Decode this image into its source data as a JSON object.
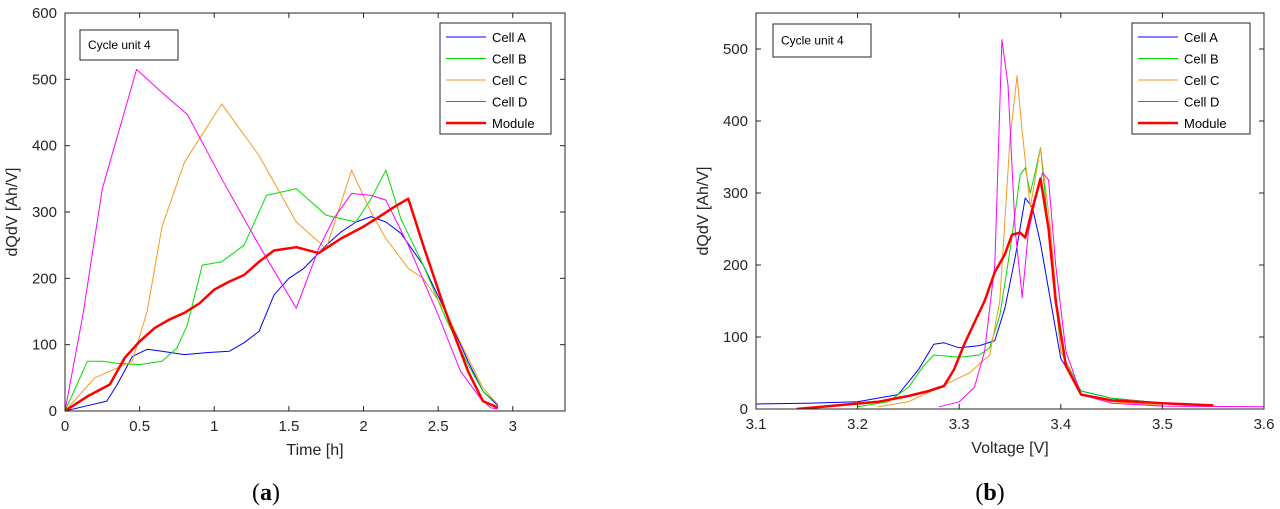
{
  "chart_data": [
    {
      "type": "line",
      "panel_label": "(a)",
      "annotation": "Cycle unit 4",
      "xlabel": "Time [h]",
      "ylabel": "dQdV [Ah/V]",
      "xlim": [
        0,
        3.35
      ],
      "ylim": [
        0,
        600
      ],
      "xticks": [
        "0",
        "0.5",
        "1",
        "1.5",
        "2",
        "2.5",
        "3"
      ],
      "xtick_values": [
        0,
        0.5,
        1,
        1.5,
        2,
        2.5,
        3
      ],
      "yticks": [
        "0",
        "100",
        "200",
        "300",
        "400",
        "500",
        "600"
      ],
      "ytick_values": [
        0,
        100,
        200,
        300,
        400,
        500,
        600
      ],
      "legend_position": "top-right",
      "series": [
        {
          "name": "Cell A",
          "color": "#0000ff",
          "width": 1,
          "x": [
            0,
            0.15,
            0.28,
            0.35,
            0.45,
            0.55,
            0.65,
            0.8,
            0.95,
            1.1,
            1.2,
            1.3,
            1.4,
            1.5,
            1.6,
            1.75,
            1.85,
            1.95,
            2.05,
            2.15,
            2.25,
            2.4,
            2.55,
            2.7,
            2.8,
            2.9
          ],
          "y": [
            0,
            8,
            15,
            40,
            82,
            93,
            90,
            85,
            88,
            90,
            103,
            120,
            175,
            200,
            215,
            250,
            270,
            285,
            293,
            285,
            268,
            220,
            150,
            75,
            30,
            8
          ]
        },
        {
          "name": "Cell B",
          "color": "#00dd00",
          "width": 1,
          "x": [
            0,
            0.15,
            0.25,
            0.35,
            0.5,
            0.65,
            0.75,
            0.82,
            0.92,
            1.05,
            1.2,
            1.35,
            1.55,
            1.75,
            1.95,
            2.05,
            2.15,
            2.25,
            2.4,
            2.55,
            2.7,
            2.8,
            2.9
          ],
          "y": [
            0,
            75,
            75,
            72,
            70,
            75,
            95,
            130,
            220,
            225,
            250,
            325,
            335,
            295,
            285,
            320,
            363,
            290,
            220,
            140,
            70,
            30,
            10
          ]
        },
        {
          "name": "Cell C",
          "color": "#f59a23",
          "width": 1,
          "x": [
            0,
            0.2,
            0.35,
            0.45,
            0.55,
            0.65,
            0.8,
            1.05,
            1.3,
            1.55,
            1.75,
            1.92,
            2.05,
            2.15,
            2.3,
            2.4,
            2.55,
            2.7,
            2.8,
            2.9
          ],
          "y": [
            0,
            50,
            65,
            75,
            150,
            278,
            375,
            463,
            385,
            285,
            245,
            363,
            300,
            260,
            215,
            200,
            150,
            80,
            35,
            10
          ]
        },
        {
          "name": "Cell D",
          "color": "#ff00ff",
          "width": 1,
          "x": [
            0,
            0.12,
            0.25,
            0.48,
            0.65,
            0.82,
            1.05,
            1.3,
            1.55,
            1.7,
            1.8,
            1.92,
            2.05,
            2.15,
            2.3,
            2.5,
            2.65,
            2.78,
            2.85,
            2.9
          ],
          "y": [
            0,
            145,
            335,
            515,
            480,
            447,
            350,
            250,
            155,
            245,
            290,
            328,
            325,
            318,
            250,
            145,
            60,
            20,
            5,
            3
          ]
        },
        {
          "name": "Module",
          "color": "#ff0000",
          "width": 2.5,
          "x": [
            0,
            0.15,
            0.3,
            0.4,
            0.5,
            0.6,
            0.7,
            0.8,
            0.9,
            1.0,
            1.1,
            1.2,
            1.3,
            1.4,
            1.55,
            1.7,
            1.85,
            2.0,
            2.1,
            2.2,
            2.3,
            2.4,
            2.55,
            2.7,
            2.8,
            2.9
          ],
          "y": [
            0,
            22,
            40,
            80,
            105,
            125,
            138,
            148,
            162,
            183,
            195,
            205,
            225,
            242,
            247,
            238,
            260,
            278,
            292,
            307,
            320,
            250,
            150,
            60,
            15,
            5
          ]
        }
      ]
    },
    {
      "type": "line",
      "panel_label": "(b)",
      "annotation": "Cycle unit 4",
      "xlabel": "Voltage [V]",
      "ylabel": "dQdV [Ah/V]",
      "xlim": [
        3.1,
        3.6
      ],
      "ylim": [
        0,
        550
      ],
      "xticks": [
        "3.1",
        "3.2",
        "3.3",
        "3.4",
        "3.5",
        "3.6"
      ],
      "xtick_values": [
        3.1,
        3.2,
        3.3,
        3.4,
        3.5,
        3.6
      ],
      "yticks": [
        "0",
        "100",
        "200",
        "300",
        "400",
        "500"
      ],
      "ytick_values": [
        0,
        100,
        200,
        300,
        400,
        500
      ],
      "legend_position": "top-right",
      "series": [
        {
          "name": "Cell A",
          "color": "#0000ff",
          "width": 1,
          "x": [
            3.1,
            3.15,
            3.2,
            3.24,
            3.26,
            3.275,
            3.285,
            3.3,
            3.32,
            3.335,
            3.345,
            3.355,
            3.365,
            3.372,
            3.38,
            3.39,
            3.4,
            3.42,
            3.45,
            3.5,
            3.55
          ],
          "y": [
            7,
            8,
            10,
            20,
            55,
            90,
            92,
            85,
            88,
            95,
            140,
            210,
            293,
            280,
            230,
            150,
            70,
            25,
            15,
            8,
            5
          ]
        },
        {
          "name": "Cell B",
          "color": "#00dd00",
          "width": 1,
          "x": [
            3.2,
            3.23,
            3.25,
            3.265,
            3.275,
            3.3,
            3.32,
            3.33,
            3.34,
            3.35,
            3.36,
            3.365,
            3.37,
            3.375,
            3.38,
            3.39,
            3.4,
            3.42,
            3.45,
            3.5,
            3.55
          ],
          "y": [
            3,
            10,
            30,
            60,
            75,
            72,
            75,
            85,
            130,
            220,
            325,
            335,
            300,
            330,
            363,
            220,
            80,
            25,
            15,
            8,
            5
          ]
        },
        {
          "name": "Cell C",
          "color": "#f59a23",
          "width": 1,
          "x": [
            3.22,
            3.25,
            3.28,
            3.31,
            3.33,
            3.34,
            3.35,
            3.357,
            3.362,
            3.37,
            3.38,
            3.39,
            3.4,
            3.42,
            3.45,
            3.5
          ],
          "y": [
            3,
            10,
            30,
            50,
            75,
            150,
            375,
            463,
            385,
            280,
            363,
            250,
            80,
            20,
            10,
            5
          ]
        },
        {
          "name": "Cell D",
          "color": "#ff00ff",
          "width": 1,
          "x": [
            3.28,
            3.3,
            3.315,
            3.325,
            3.335,
            3.342,
            3.348,
            3.355,
            3.362,
            3.368,
            3.375,
            3.382,
            3.388,
            3.395,
            3.405,
            3.42,
            3.45,
            3.5,
            3.6
          ],
          "y": [
            3,
            10,
            30,
            80,
            200,
            513,
            450,
            250,
            155,
            245,
            290,
            328,
            318,
            200,
            80,
            20,
            8,
            4,
            3
          ]
        },
        {
          "name": "Module",
          "color": "#ff0000",
          "width": 2.5,
          "x": [
            3.14,
            3.18,
            3.22,
            3.25,
            3.27,
            3.285,
            3.295,
            3.305,
            3.315,
            3.325,
            3.335,
            3.345,
            3.352,
            3.36,
            3.365,
            3.372,
            3.38,
            3.388,
            3.395,
            3.405,
            3.42,
            3.45,
            3.5,
            3.55
          ],
          "y": [
            0,
            5,
            10,
            18,
            25,
            32,
            55,
            90,
            120,
            150,
            190,
            215,
            242,
            245,
            238,
            278,
            320,
            250,
            150,
            60,
            20,
            12,
            8,
            5
          ]
        }
      ]
    }
  ]
}
